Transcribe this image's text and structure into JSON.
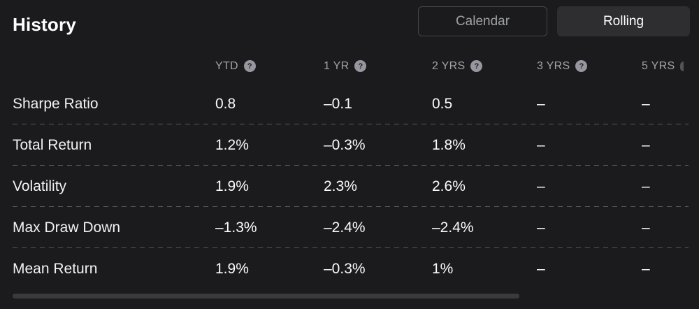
{
  "header": {
    "title": "History",
    "view_toggle": {
      "calendar_label": "Calendar",
      "rolling_label": "Rolling",
      "active": "Rolling"
    }
  },
  "icons": {
    "help": "?"
  },
  "table": {
    "columns": [
      {
        "label": "YTD"
      },
      {
        "label": "1 YR"
      },
      {
        "label": "2 YRS"
      },
      {
        "label": "3 YRS"
      },
      {
        "label": "5 YRS"
      }
    ],
    "rows": [
      {
        "label": "Sharpe Ratio",
        "values": [
          "0.8",
          "–0.1",
          "0.5",
          "–",
          "–"
        ]
      },
      {
        "label": "Total Return",
        "values": [
          "1.2%",
          "–0.3%",
          "1.8%",
          "–",
          "–"
        ]
      },
      {
        "label": "Volatility",
        "values": [
          "1.9%",
          "2.3%",
          "2.6%",
          "–",
          "–"
        ]
      },
      {
        "label": "Max Draw Down",
        "values": [
          "–1.3%",
          "–2.4%",
          "–2.4%",
          "–",
          "–"
        ]
      },
      {
        "label": "Mean Return",
        "values": [
          "1.9%",
          "–0.3%",
          "1%",
          "–",
          "–"
        ]
      }
    ]
  },
  "colors": {
    "background": "#1b1b1d",
    "active_button_bg": "#2e2e31",
    "muted_text": "#a2a2a8",
    "separator": "#58585c",
    "scrollbar": "#3a3a3e"
  }
}
